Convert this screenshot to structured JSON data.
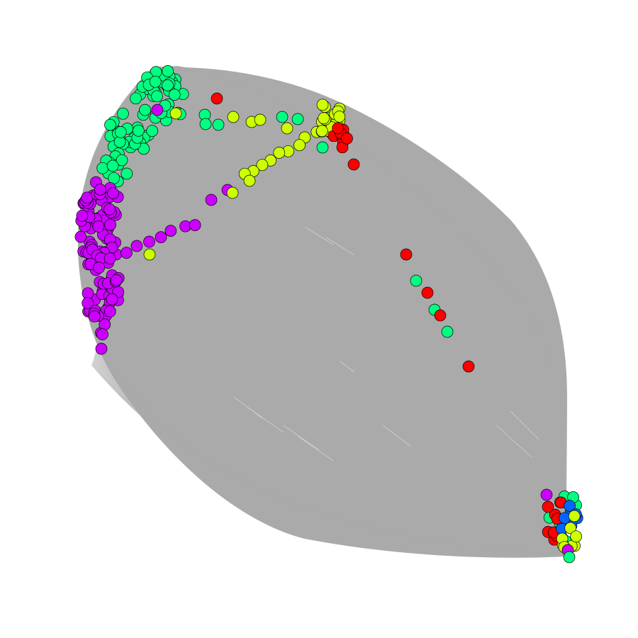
{
  "graph": {
    "edge_color": "#aaaaaa",
    "node_stroke": "#000000",
    "groups": [
      {
        "name": "red",
        "color": "#ff0000"
      },
      {
        "name": "green",
        "color": "#00ff80"
      },
      {
        "name": "yellow",
        "color": "#ccff00"
      },
      {
        "name": "purple",
        "color": "#cc00ff"
      },
      {
        "name": "blue",
        "color": "#0066ff"
      }
    ]
  }
}
